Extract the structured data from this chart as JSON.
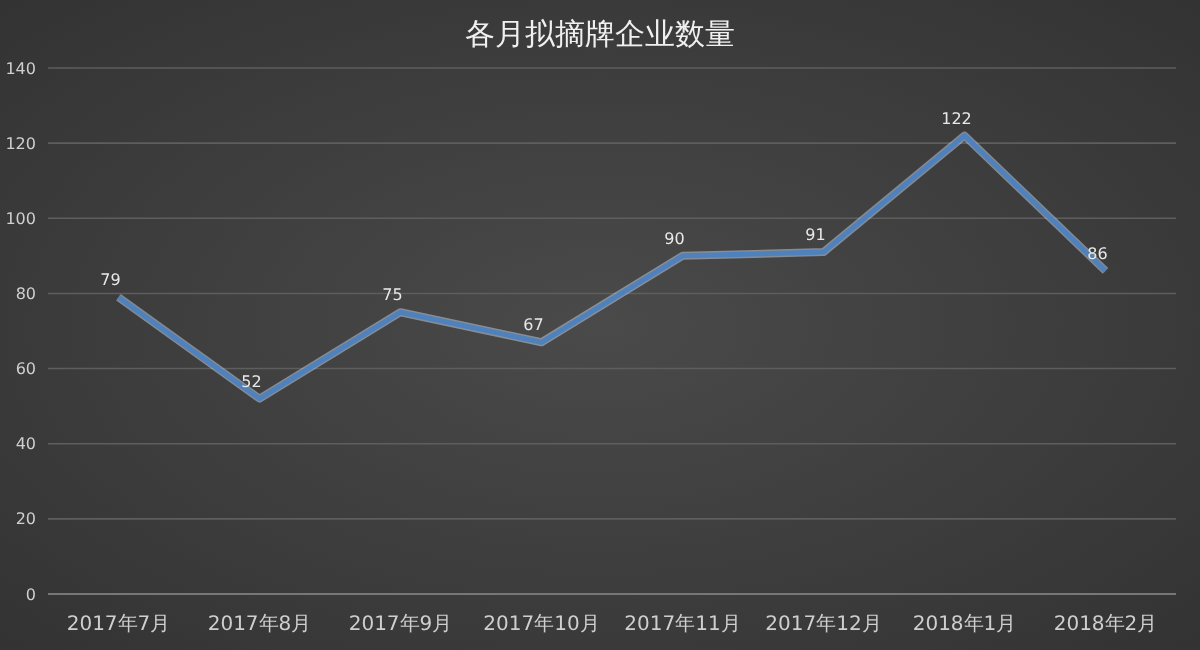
{
  "chart_data": {
    "type": "line",
    "title": "各月拟摘牌企业数量",
    "categories": [
      "2017年7月",
      "2017年8月",
      "2017年9月",
      "2017年10月",
      "2017年11月",
      "2017年12月",
      "2018年1月",
      "2018年2月"
    ],
    "values": [
      79,
      52,
      75,
      67,
      90,
      91,
      122,
      86
    ],
    "color": "#4f81bd",
    "ylim": [
      0,
      140
    ],
    "yticks": [
      0,
      20,
      40,
      60,
      80,
      100,
      120,
      140
    ],
    "grid": "y",
    "data_labels": true
  }
}
